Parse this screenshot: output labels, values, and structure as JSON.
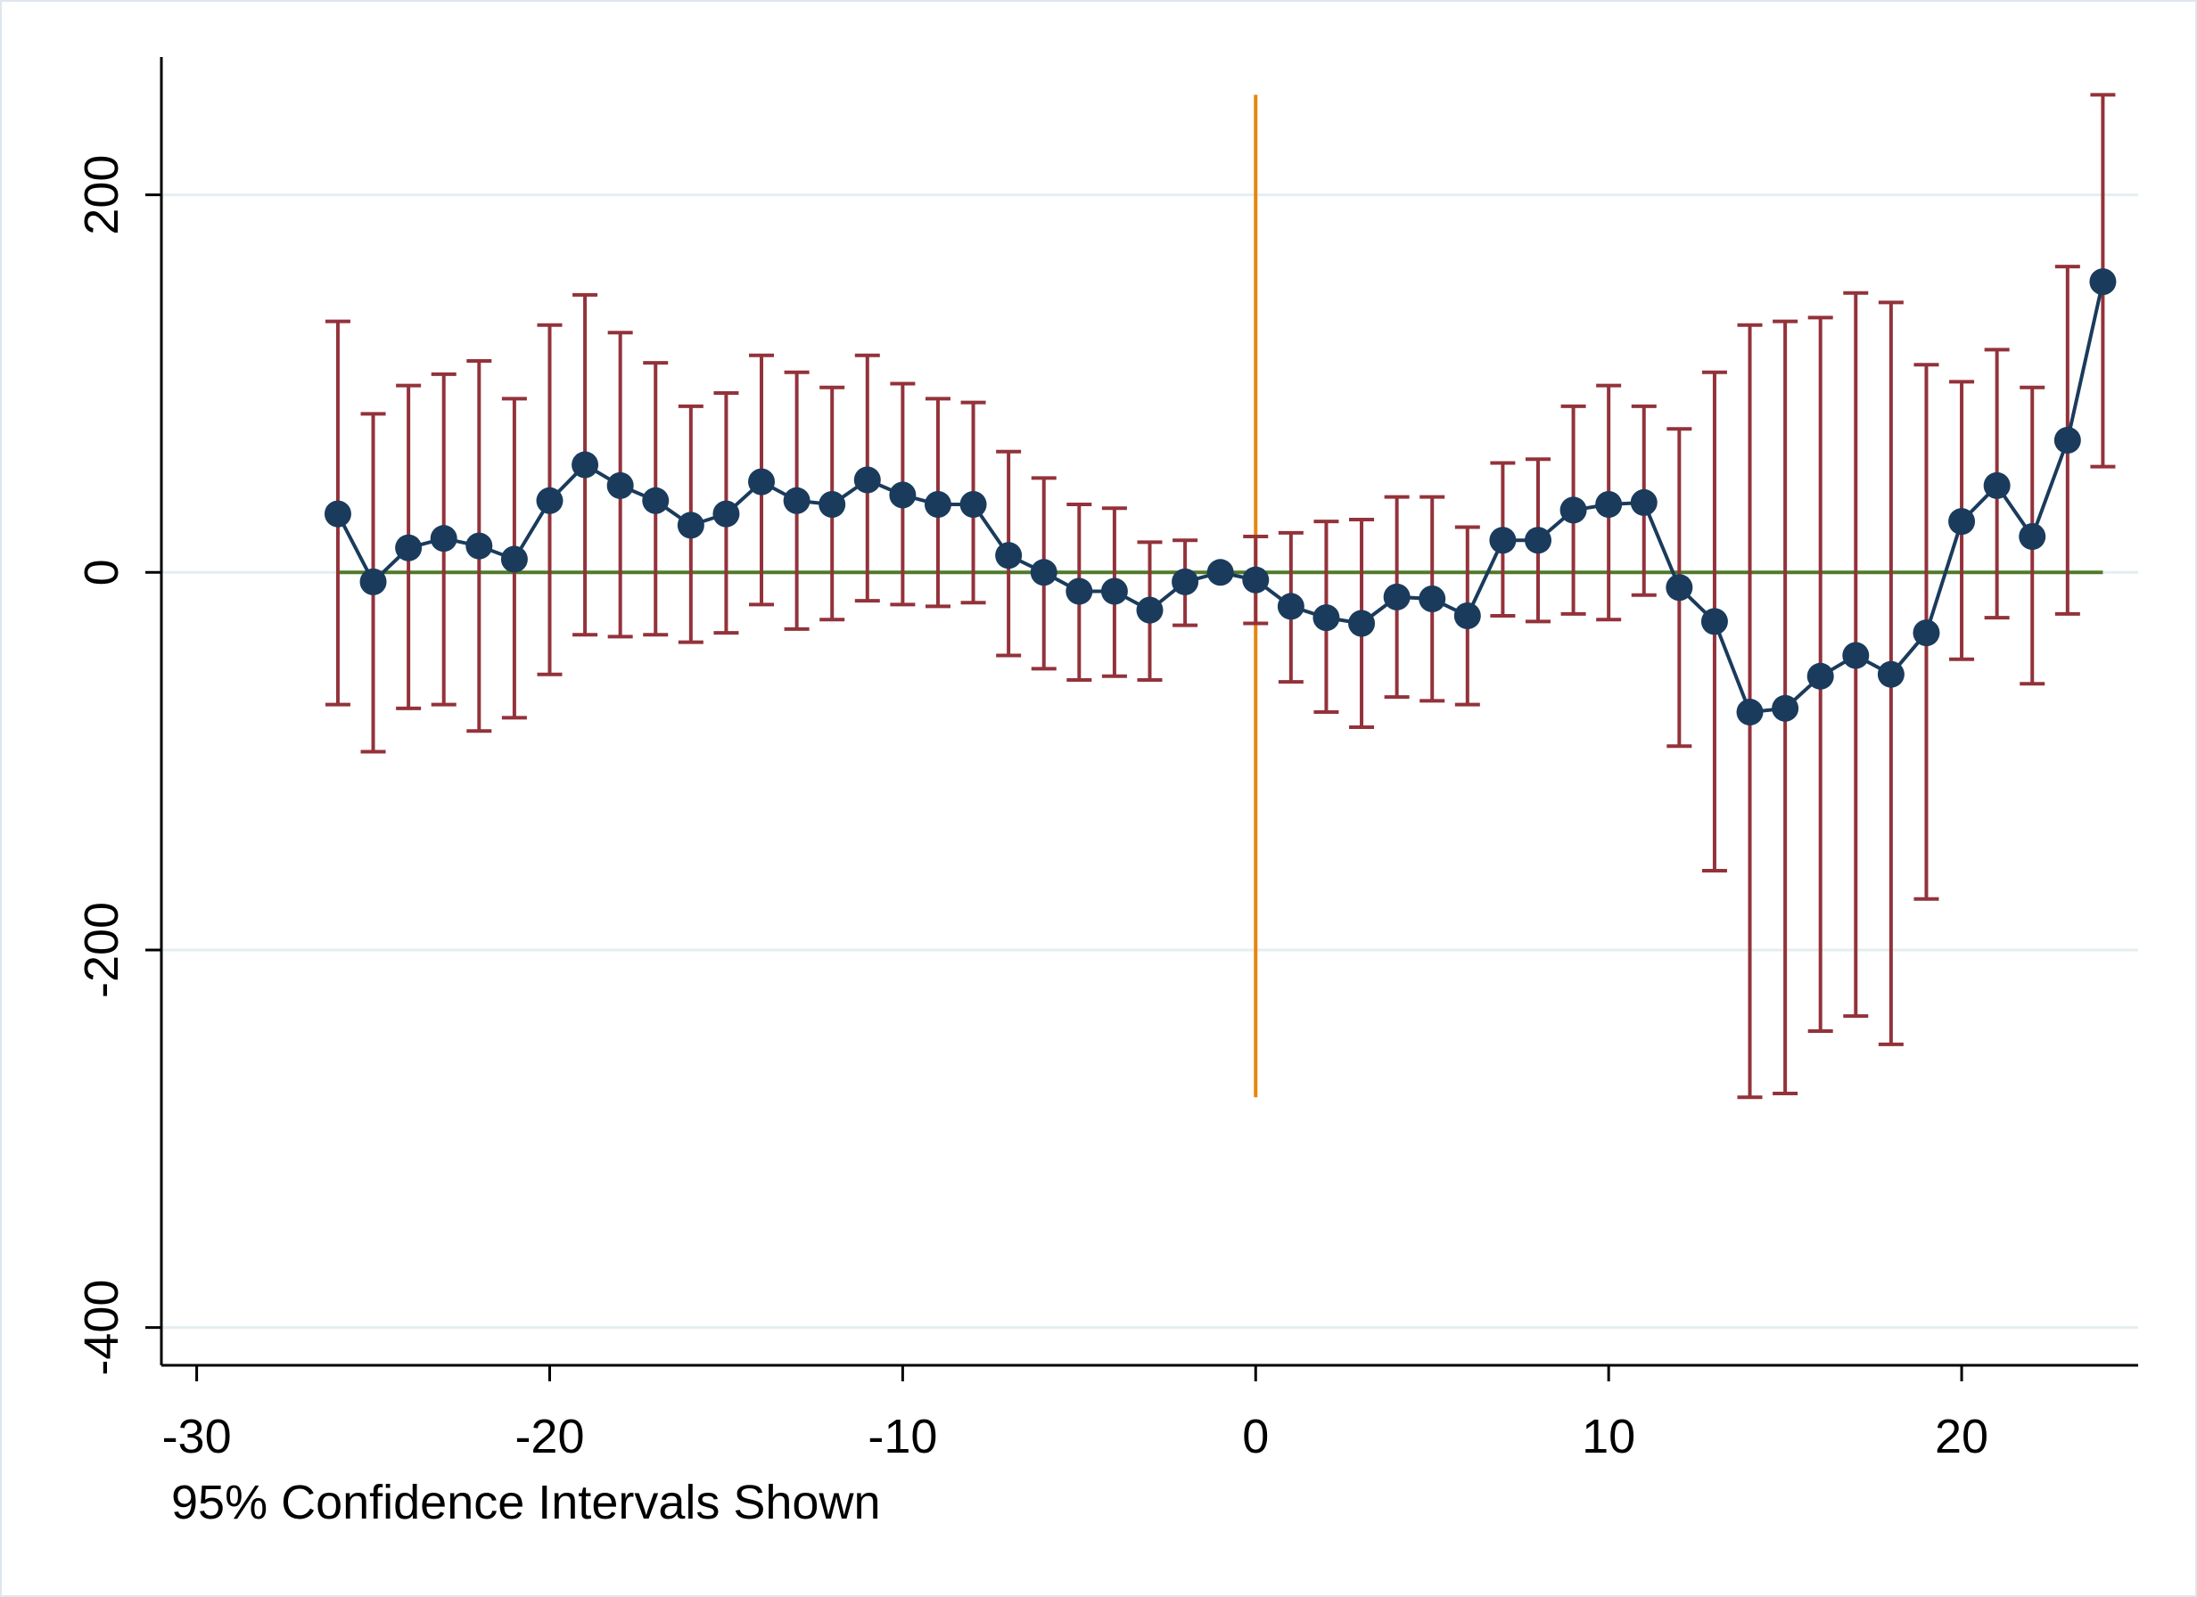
{
  "chart_data": {
    "type": "scatter",
    "note": "95% Confidence Intervals Shown",
    "xlim": [
      -31,
      25
    ],
    "ylim": [
      -420,
      273
    ],
    "x_ticks": [
      -30,
      -20,
      -10,
      0,
      10,
      20
    ],
    "y_ticks": [
      -400,
      -200,
      0,
      200
    ],
    "grid": "horizontal at y ticks",
    "reference_lines": {
      "horizontal_zero": {
        "x_from": -26,
        "x_to": 24,
        "y": 0
      },
      "vertical_event": {
        "x": 0,
        "y_from": -278,
        "y_to": 253
      }
    },
    "series": [
      {
        "x": [
          -26,
          -25,
          -24,
          -23,
          -22,
          -21,
          -20,
          -19,
          -18,
          -17,
          -16,
          -15,
          -14,
          -13,
          -12,
          -11,
          -10,
          -9,
          -8,
          -7,
          -6,
          -5,
          -4,
          -3,
          -2,
          -1,
          0,
          1,
          2,
          3,
          4,
          5,
          6,
          7,
          8,
          9,
          10,
          11,
          12,
          13,
          14,
          15,
          16,
          17,
          18,
          19,
          20,
          21,
          22,
          23,
          24
        ],
        "y": [
          31,
          -5,
          13,
          18,
          14,
          7,
          38,
          57,
          46,
          38,
          25,
          31,
          48,
          38,
          36,
          49,
          41,
          36,
          36,
          9,
          0,
          -10,
          -10,
          -20,
          -5,
          0,
          -4,
          -18,
          -24,
          -27,
          -13,
          -14,
          -23,
          17,
          17,
          33,
          36,
          37,
          -8,
          -26,
          -74,
          -72,
          -55,
          -44,
          -54,
          -32,
          27,
          46,
          19,
          70,
          154
        ],
        "ci_low": [
          -70,
          -95,
          -72,
          -70,
          -84,
          -77,
          -54,
          -33,
          -34,
          -33,
          -37,
          -32,
          -17,
          -30,
          -25,
          -15,
          -17,
          -18,
          -16,
          -44,
          -51,
          -57,
          -55,
          -57,
          -28,
          null,
          -27,
          -58,
          -74,
          -82,
          -66,
          -68,
          -70,
          -23,
          -26,
          -22,
          -25,
          -12,
          -92,
          -158,
          -278,
          -276,
          -243,
          -235,
          -250,
          -173,
          -46,
          -24,
          -59,
          -22,
          56
        ],
        "ci_high": [
          133,
          84,
          99,
          105,
          112,
          92,
          131,
          147,
          127,
          111,
          88,
          95,
          115,
          106,
          98,
          115,
          100,
          92,
          90,
          64,
          50,
          36,
          34,
          16,
          17,
          null,
          19,
          21,
          27,
          28,
          40,
          40,
          24,
          58,
          60,
          88,
          99,
          88,
          76,
          106,
          131,
          133,
          135,
          148,
          143,
          110,
          101,
          118,
          98,
          162,
          253
        ]
      }
    ]
  }
}
